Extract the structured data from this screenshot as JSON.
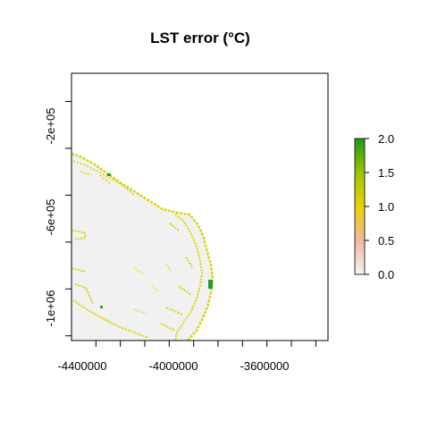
{
  "chart_data": {
    "type": "heatmap",
    "title": "LST error (°C)",
    "xlabel": "",
    "ylabel": "",
    "x_ticks": [
      {
        "label": "-4400000",
        "value": -4400000
      },
      {
        "label": "-4000000",
        "value": -4000000
      },
      {
        "label": "-3600000",
        "value": -3600000
      }
    ],
    "y_ticks": [
      {
        "label": "-2e+05",
        "value": -200000
      },
      {
        "label": "-6e+05",
        "value": -600000
      },
      {
        "label": "-1e+06",
        "value": -1000000
      }
    ],
    "xlim": [
      -4500000,
      -3450000
    ],
    "ylim": [
      -1120000,
      20000
    ],
    "grid": false,
    "legend": {
      "position": "right",
      "range": [
        0.0,
        2.0
      ],
      "tick_labels": [
        "0.0",
        "0.5",
        "1.0",
        "1.5",
        "2.0"
      ],
      "colors": [
        "#f2f2f2",
        "#f2b8a0",
        "#e6d400",
        "#9cc400",
        "#1a9a1a"
      ]
    },
    "colors": {
      "land_background": "#f1f1f1",
      "error_contour": "#d8d400",
      "high_error": "#2a9a2a"
    }
  }
}
